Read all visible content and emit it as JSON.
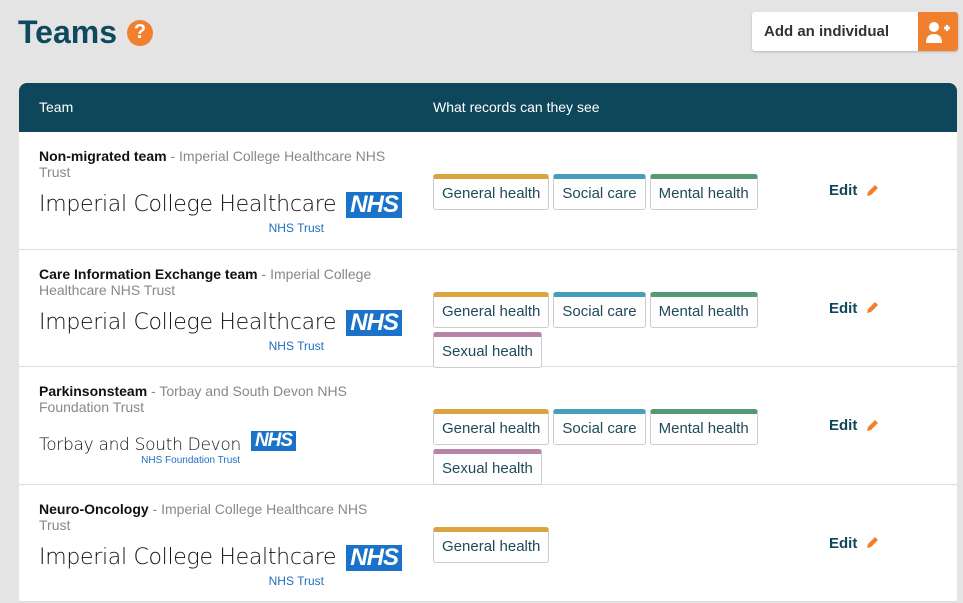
{
  "page": {
    "title": "Teams",
    "add_button": "Add an individual"
  },
  "table": {
    "col_team": "Team",
    "col_records": "What records can they see",
    "edit_label": "Edit",
    "rows": [
      {
        "team": "Non-migrated team",
        "org": " - Imperial College Healthcare NHS Trust",
        "logo_text": "Imperial College Healthcare",
        "logo_sub": "NHS Trust",
        "tags": [
          "General health",
          "Social care",
          "Mental health"
        ]
      },
      {
        "team": "Care Information Exchange team",
        "org": " - Imperial College Healthcare NHS Trust",
        "logo_text": "Imperial College Healthcare",
        "logo_sub": "NHS Trust",
        "tags": [
          "General health",
          "Social care",
          "Mental health",
          "Sexual health"
        ]
      },
      {
        "team": "Parkinsonsteam",
        "org": " - Torbay and South Devon NHS Foundation Trust",
        "logo_text": "Torbay and South Devon",
        "logo_sub": "NHS Foundation Trust",
        "tags": [
          "General health",
          "Social care",
          "Mental health",
          "Sexual health"
        ]
      },
      {
        "team": "Neuro-Oncology",
        "org": " - Imperial College Healthcare NHS Trust",
        "logo_text": "Imperial College Healthcare",
        "logo_sub": "NHS Trust",
        "tags": [
          "General health"
        ]
      }
    ]
  },
  "nhs_mark": "NHS",
  "colors": {
    "General health": "#dba43f",
    "Social care": "#459fb9",
    "Mental health": "#559a73",
    "Sexual health": "#b784a7",
    "accent": "#f07f2e",
    "header": "#0e475b"
  }
}
